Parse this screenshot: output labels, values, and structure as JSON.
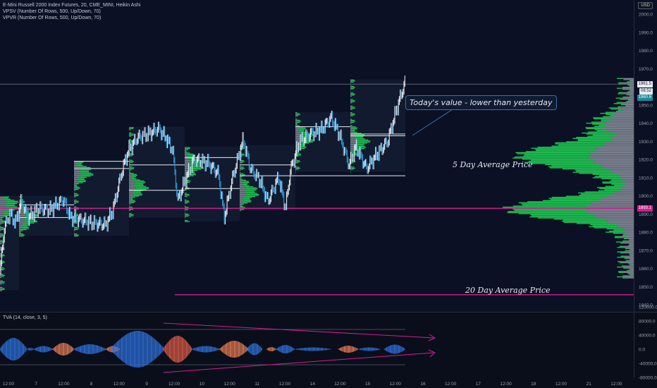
{
  "chart_title": "E-Mini Russell 2000 Index Futures, 20, CME_MINI, Heikin Ashi",
  "indicators": [
    "VPSV (Number Of Rows, 500, Up/Down, 70)",
    "VPVR (Number Of Rows, 500, Up/Down, 70)"
  ],
  "currency": "USD",
  "annotations": {
    "callout": "Today's value - lower than yesterday",
    "five_day": "5 Day Average Price",
    "twenty_day": "20 Day Average Price"
  },
  "price_axis": {
    "ticks": [
      "2000.0",
      "1990.0",
      "1980.0",
      "1970.0",
      "1950.0",
      "1940.0",
      "1930.0",
      "1920.0",
      "1910.0",
      "1900.0",
      "1890.0",
      "1880.0",
      "1870.0",
      "1860.0",
      "1850.0",
      "1840.0"
    ],
    "tags": {
      "last": "1961.5",
      "countdown": "06:52",
      "teal": "1960.6",
      "poc": "1893.1"
    }
  },
  "time_axis": [
    "12:00",
    "7",
    "12:00",
    "8",
    "12:00",
    "9",
    "12:00",
    "10",
    "12:00",
    "11",
    "12:00",
    "14",
    "12:00",
    "15",
    "12:00",
    "16",
    "12:00",
    "17",
    "12:00",
    "18",
    "12:00",
    "21",
    "12:00"
  ],
  "tva": {
    "label": "TVA (14, close, 3, 5)",
    "ticks": [
      "120000.0",
      "80000.0",
      "40000.0",
      "0.0",
      "-40000.0",
      "-80000.0"
    ]
  },
  "colors": {
    "background": "#0a0e1a",
    "candle": "#e8ecf2",
    "wick_down": "#2f9bd6",
    "volume_up": "#23e05a",
    "volume_down": "#9aa0ab",
    "magenta": "#d01f8f",
    "tva_blue": "#2e6fd8",
    "tva_red": "#d65a4a",
    "tva_orange": "#e07a55",
    "teal": "#1a8a99"
  },
  "chart_data": {
    "type": "line",
    "title": "E-Mini Russell 2000 Index Futures, 20, CME_MINI, Heikin Ashi",
    "x": [
      "12:00",
      "7",
      "12:00",
      "8",
      "12:00",
      "9",
      "12:00",
      "10",
      "12:00",
      "11",
      "12:00",
      "14",
      "12:00",
      "15",
      "12:00"
    ],
    "series": [
      {
        "values": [
          1880,
          1890,
          1888,
          1887,
          1905,
          1925,
          1932,
          1905,
          1920,
          1915,
          1911,
          1930,
          1938,
          1915,
          1960
        ]
      }
    ],
    "ylim": [
      1840,
      2000
    ],
    "reference_lines": {
      "poc": 1893.1
    }
  }
}
